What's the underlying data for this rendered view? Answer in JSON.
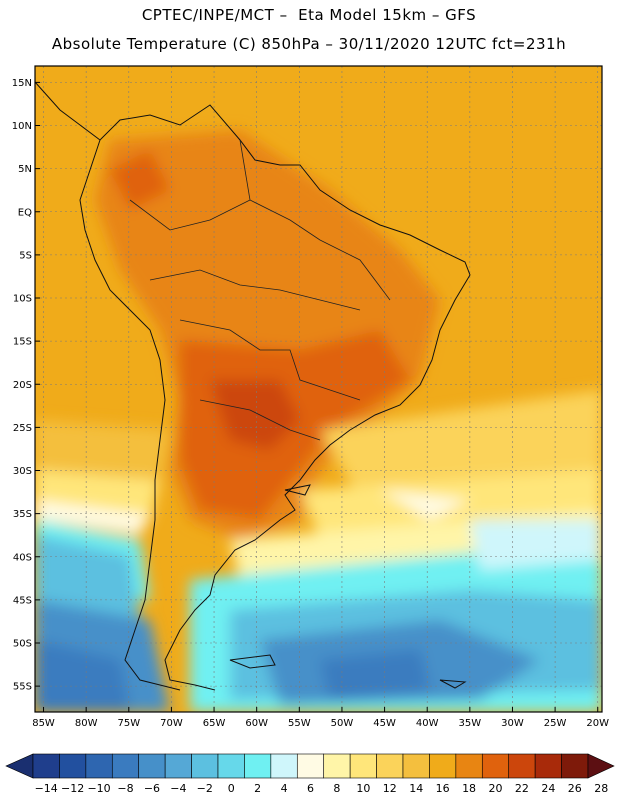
{
  "title_line1": "CPTEC/INPE/MCT –  Eta Model 15km – GFS",
  "title_line2": "Absolute Temperature (C) 850hPa – 30/11/2020 12UTC fct=231h",
  "lat_labels": [
    "15N",
    "10N",
    "5N",
    "EQ",
    "5S",
    "10S",
    "15S",
    "20S",
    "25S",
    "30S",
    "35S",
    "40S",
    "45S",
    "50S",
    "55S"
  ],
  "lat_values": [
    15,
    10,
    5,
    0,
    -5,
    -10,
    -15,
    -20,
    -25,
    -30,
    -35,
    -40,
    -45,
    -50,
    -55
  ],
  "lon_labels": [
    "85W",
    "80W",
    "75W",
    "70W",
    "65W",
    "60W",
    "55W",
    "50W",
    "45W",
    "40W",
    "35W",
    "30W",
    "25W",
    "20W"
  ],
  "lon_values": [
    -85,
    -80,
    -75,
    -70,
    -65,
    -60,
    -55,
    -50,
    -45,
    -40,
    -35,
    -30,
    -25,
    -20
  ],
  "colorbar": {
    "tick_labels": [
      "-14",
      "-12",
      "-10",
      "-8",
      "-6",
      "-4",
      "-2",
      "0",
      "2",
      "4",
      "6",
      "8",
      "10",
      "12",
      "14",
      "16",
      "18",
      "20",
      "22",
      "24",
      "26",
      "28"
    ],
    "colors": [
      "#1f3e8c",
      "#22509f",
      "#2e66b0",
      "#3a7bbf",
      "#4690c9",
      "#55a8d6",
      "#5cc0e0",
      "#66d8ea",
      "#6ff0f2",
      "#cff6fb",
      "#fffbe4",
      "#fff5a8",
      "#ffe67a",
      "#fbd35a",
      "#f4bf3e",
      "#f0ab1a",
      "#e88512",
      "#e0620d",
      "#cc460c",
      "#a82a0a",
      "#7e1a0a"
    ],
    "under_color": "#1a2f70",
    "over_color": "#5c0f12"
  }
}
